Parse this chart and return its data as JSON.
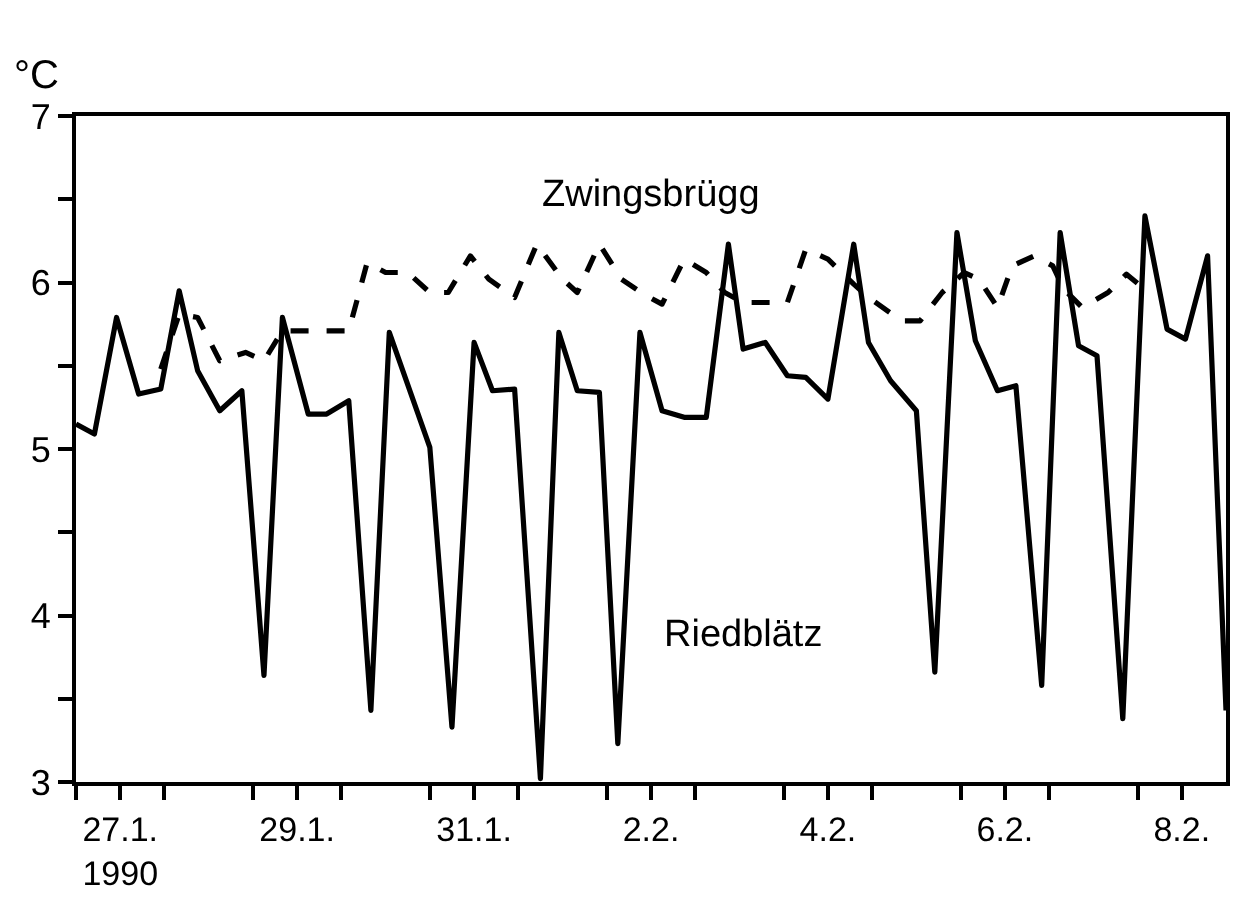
{
  "chart_data": {
    "type": "line",
    "ylabel": "°C",
    "legend": false,
    "marker": "none",
    "xlim": [
      "1990-01-27T00:00",
      "1990-02-09T00:00"
    ],
    "xticks": [
      {
        "value": "1990-01-27T00:00",
        "label": null
      },
      {
        "value": "1990-01-27T12:00",
        "label": "27.1.\n1990"
      },
      {
        "value": "1990-01-28T00:00",
        "label": null
      },
      {
        "value": "1990-01-29T00:00",
        "label": null
      },
      {
        "value": "1990-01-29T12:00",
        "label": "29.1."
      },
      {
        "value": "1990-01-30T00:00",
        "label": null
      },
      {
        "value": "1990-01-31T00:00",
        "label": null
      },
      {
        "value": "1990-01-31T12:00",
        "label": "31.1."
      },
      {
        "value": "1990-02-01T00:00",
        "label": null
      },
      {
        "value": "1990-02-02T00:00",
        "label": null
      },
      {
        "value": "1990-02-02T12:00",
        "label": "2.2."
      },
      {
        "value": "1990-02-03T00:00",
        "label": null
      },
      {
        "value": "1990-02-04T00:00",
        "label": null
      },
      {
        "value": "1990-02-04T12:00",
        "label": "4.2."
      },
      {
        "value": "1990-02-05T00:00",
        "label": null
      },
      {
        "value": "1990-02-06T00:00",
        "label": null
      },
      {
        "value": "1990-02-06T12:00",
        "label": "6.2."
      },
      {
        "value": "1990-02-07T00:00",
        "label": null
      },
      {
        "value": "1990-02-08T00:00",
        "label": null
      },
      {
        "value": "1990-02-08T12:00",
        "label": "8.2."
      }
    ],
    "ylim": [
      3,
      7
    ],
    "yticks": [
      3,
      {
        "value": 3.5,
        "label": null
      },
      4,
      {
        "value": 4.5,
        "label": null
      },
      5,
      {
        "value": 5.5,
        "label": null
      },
      6,
      {
        "value": 6.5,
        "label": null
      },
      7
    ],
    "series": [
      {
        "name": "Zwingsbrügg",
        "color": "#000000",
        "line_style": "dashed",
        "x": [
          "1990-01-27T23:00",
          "1990-01-28T04:00",
          "1990-01-28T09:00",
          "1990-01-28T15:00",
          "1990-01-28T22:00",
          "1990-01-29T03:00",
          "1990-01-29T08:00",
          "1990-01-29T15:00",
          "1990-01-29T20:00",
          "1990-01-30T02:00",
          "1990-01-30T07:00",
          "1990-01-30T12:00",
          "1990-01-30T18:00",
          "1990-01-31T00:00",
          "1990-01-31T05:00",
          "1990-01-31T11:00",
          "1990-01-31T16:00",
          "1990-01-31T23:00",
          "1990-02-01T05:00",
          "1990-02-01T12:00",
          "1990-02-01T16:00",
          "1990-02-01T22:00",
          "1990-02-02T04:00",
          "1990-02-02T10:00",
          "1990-02-02T15:00",
          "1990-02-02T21:00",
          "1990-02-03T03:00",
          "1990-02-03T08:00",
          "1990-02-03T13:00",
          "1990-02-03T19:00",
          "1990-02-04T01:00",
          "1990-02-04T06:00",
          "1990-02-04T12:00",
          "1990-02-04T19:00",
          "1990-02-04T23:00",
          "1990-02-05T08:00",
          "1990-02-05T13:00",
          "1990-02-05T19:00",
          "1990-02-06T01:00",
          "1990-02-06T05:00",
          "1990-02-06T10:00",
          "1990-02-06T14:00",
          "1990-02-06T20:00",
          "1990-02-07T01:00",
          "1990-02-07T04:00",
          "1990-02-07T09:00",
          "1990-02-07T16:00",
          "1990-02-07T21:00",
          "1990-02-08T03:00"
        ],
        "values": [
          5.48,
          5.81,
          5.79,
          5.53,
          5.58,
          5.53,
          5.71,
          5.71,
          5.71,
          5.71,
          6.12,
          6.06,
          6.06,
          5.94,
          5.94,
          6.16,
          6.02,
          5.91,
          6.23,
          6.02,
          5.94,
          6.23,
          6.02,
          5.93,
          5.87,
          6.14,
          6.06,
          5.94,
          5.88,
          5.88,
          5.88,
          6.2,
          6.14,
          5.99,
          5.91,
          5.77,
          5.77,
          5.94,
          6.06,
          6.02,
          5.85,
          6.1,
          6.16,
          6.1,
          5.96,
          5.85,
          5.94,
          6.05,
          5.94
        ]
      },
      {
        "name": "Riedblätz",
        "color": "#000000",
        "line_style": "solid",
        "x": [
          "1990-01-27T00:00",
          "1990-01-27T05:00",
          "1990-01-27T11:00",
          "1990-01-27T17:00",
          "1990-01-27T23:00",
          "1990-01-28T04:00",
          "1990-01-28T09:00",
          "1990-01-28T15:00",
          "1990-01-28T21:00",
          "1990-01-29T03:00",
          "1990-01-29T08:00",
          "1990-01-29T15:00",
          "1990-01-29T20:00",
          "1990-01-30T02:00",
          "1990-01-30T08:00",
          "1990-01-30T13:00",
          "1990-01-31T00:00",
          "1990-01-31T06:00",
          "1990-01-31T12:00",
          "1990-01-31T17:00",
          "1990-01-31T23:00",
          "1990-02-01T06:00",
          "1990-02-01T11:00",
          "1990-02-01T16:00",
          "1990-02-01T22:00",
          "1990-02-02T03:00",
          "1990-02-02T09:00",
          "1990-02-02T15:00",
          "1990-02-02T21:00",
          "1990-02-03T03:00",
          "1990-02-03T09:00",
          "1990-02-03T13:00",
          "1990-02-03T19:00",
          "1990-02-04T01:00",
          "1990-02-04T06:00",
          "1990-02-04T12:00",
          "1990-02-04T19:00",
          "1990-02-04T23:00",
          "1990-02-05T05:00",
          "1990-02-05T12:00",
          "1990-02-05T17:00",
          "1990-02-05T23:00",
          "1990-02-06T04:00",
          "1990-02-06T10:00",
          "1990-02-06T15:00",
          "1990-02-06T22:00",
          "1990-02-07T03:00",
          "1990-02-07T08:00",
          "1990-02-07T13:00",
          "1990-02-07T20:00",
          "1990-02-08T02:00",
          "1990-02-08T08:00",
          "1990-02-08T13:00",
          "1990-02-08T19:00",
          "1990-02-09T00:00"
        ],
        "values": [
          5.15,
          5.09,
          5.79,
          5.33,
          5.36,
          5.95,
          5.47,
          5.23,
          5.35,
          3.64,
          5.79,
          5.21,
          5.21,
          5.29,
          3.43,
          5.7,
          5.01,
          3.33,
          5.64,
          5.35,
          5.36,
          3.02,
          5.7,
          5.35,
          5.34,
          3.23,
          5.7,
          5.23,
          5.19,
          5.19,
          6.23,
          5.6,
          5.64,
          5.44,
          5.43,
          5.3,
          6.23,
          5.64,
          5.41,
          5.23,
          3.66,
          6.3,
          5.65,
          5.35,
          5.38,
          3.58,
          6.3,
          5.62,
          5.56,
          3.38,
          6.4,
          5.72,
          5.66,
          6.16,
          3.43
        ]
      }
    ]
  }
}
